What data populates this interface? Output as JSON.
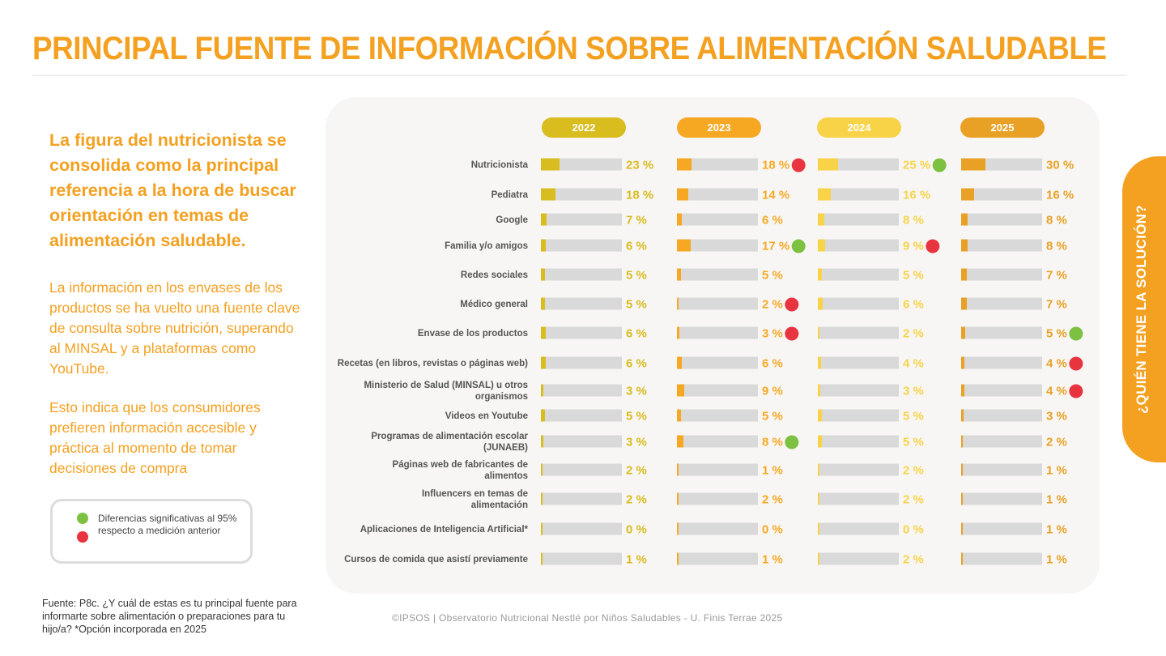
{
  "page": {
    "title": "PRINCIPAL FUENTE DE INFORMACIÓN SOBRE ALIMENTACIÓN SALUDABLE",
    "headline": "La figura del nutricionista se consolida como la principal referencia a la hora de buscar orientación en temas de alimentación saludable.",
    "paragraph1": "La información en los envases de los productos se ha vuelto una fuente clave de consulta sobre nutrición, superando al MINSAL y a plataformas como YouTube.",
    "paragraph2": "Esto indica que los consumidores prefieren información accesible y práctica al momento de tomar decisiones de compra",
    "legend_text": "Diferencias significativas al 95% respecto a medición anterior",
    "source": "Fuente: P8c. ¿Y cuál de estas es tu principal fuente para informarte sobre alimentación o preparaciones para tu hijo/a? *Opción incorporada en 2025",
    "footer": "©IPSOS | Observatorio Nutricional Nestlé por Niños Saludables - U. Finis Terrae 2025",
    "side_tab": "¿QUIÉN TIENE LA SOLUCIÓN?"
  },
  "colors": {
    "accent": "#F4A020",
    "up_dot": "#7DC143",
    "down_dot": "#E8343F",
    "track": "#d9d9d9"
  },
  "chart_data": {
    "type": "bar",
    "orientation": "horizontal",
    "categories": [
      "Nutricionista",
      "Pediatra",
      "Google",
      "Familia y/o amigos",
      "Redes sociales",
      "Médico general",
      "Envase de los productos",
      "Recetas (en libros, revistas o páginas web)",
      "Ministerio de Salud (MINSAL) u otros organismos",
      "Videos en Youtube",
      "Programas de alimentación escolar (JUNAEB)",
      "Páginas web de  fabricantes de alimentos",
      "Influencers en temas de alimentación",
      "Aplicaciones de Inteligencia Artificial*",
      "Cursos de comida que asistí previamente"
    ],
    "category_lines": [
      [
        "Nutricionista"
      ],
      [
        "Pediatra"
      ],
      [
        "Google"
      ],
      [
        "Familia y/o amigos"
      ],
      [
        "Redes sociales"
      ],
      [
        "Médico general"
      ],
      [
        "Envase de los productos"
      ],
      [
        "Recetas (en libros, revistas o páginas web)"
      ],
      [
        "Ministerio de Salud (MINSAL) u otros",
        "organismos"
      ],
      [
        "Videos en Youtube"
      ],
      [
        "Programas de alimentación escolar",
        "(JUNAEB)"
      ],
      [
        "Páginas web de  fabricantes de",
        "alimentos"
      ],
      [
        "Influencers en temas de",
        "alimentación"
      ],
      [
        "Aplicaciones de Inteligencia Artificial*"
      ],
      [
        "Cursos de comida que asistí previamente"
      ]
    ],
    "unit": "%",
    "series": [
      {
        "name": "2022",
        "color": "#D9BC1E",
        "values": [
          23,
          18,
          7,
          6,
          5,
          5,
          6,
          6,
          3,
          5,
          3,
          2,
          2,
          0,
          1
        ],
        "significance": [
          null,
          null,
          null,
          null,
          null,
          null,
          null,
          null,
          null,
          null,
          null,
          null,
          null,
          null,
          null
        ]
      },
      {
        "name": "2023",
        "color": "#F7A823",
        "values": [
          18,
          14,
          6,
          17,
          5,
          2,
          3,
          6,
          9,
          5,
          8,
          1,
          2,
          0,
          1
        ],
        "significance": [
          "down",
          null,
          null,
          "up",
          null,
          "down",
          "down",
          null,
          null,
          null,
          "up",
          null,
          null,
          null,
          null
        ]
      },
      {
        "name": "2024",
        "color": "#F8D347",
        "values": [
          25,
          16,
          8,
          9,
          5,
          6,
          2,
          4,
          3,
          5,
          5,
          2,
          2,
          0,
          2
        ],
        "significance": [
          "up",
          null,
          null,
          "down",
          null,
          null,
          null,
          null,
          null,
          null,
          null,
          null,
          null,
          null,
          null
        ]
      },
      {
        "name": "2025",
        "color": "#E9A125",
        "values": [
          30,
          16,
          8,
          8,
          7,
          7,
          5,
          4,
          4,
          3,
          2,
          1,
          1,
          1,
          1
        ],
        "significance": [
          null,
          null,
          null,
          null,
          null,
          null,
          "up",
          "down",
          "down",
          null,
          null,
          null,
          null,
          null,
          null
        ]
      }
    ],
    "xlim": [
      0,
      100
    ],
    "legend": [
      {
        "marker": "green-dot",
        "meaning": "up"
      },
      {
        "marker": "red-dot",
        "meaning": "down"
      }
    ]
  }
}
